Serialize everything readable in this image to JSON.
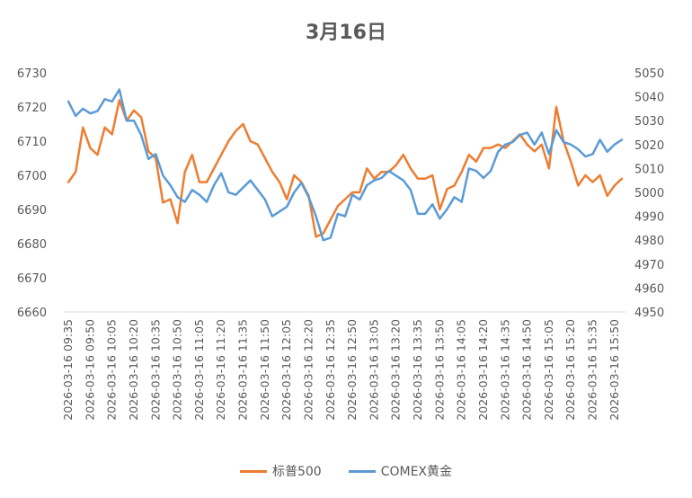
{
  "chart_data": {
    "type": "line",
    "title": "3月16日",
    "x": [
      "2026-03-16 09:35",
      "2026-03-16 09:40",
      "2026-03-16 09:45",
      "2026-03-16 09:50",
      "2026-03-16 09:55",
      "2026-03-16 10:00",
      "2026-03-16 10:05",
      "2026-03-16 10:10",
      "2026-03-16 10:15",
      "2026-03-16 10:20",
      "2026-03-16 10:25",
      "2026-03-16 10:30",
      "2026-03-16 10:35",
      "2026-03-16 10:40",
      "2026-03-16 10:45",
      "2026-03-16 10:50",
      "2026-03-16 10:55",
      "2026-03-16 11:00",
      "2026-03-16 11:05",
      "2026-03-16 11:10",
      "2026-03-16 11:15",
      "2026-03-16 11:20",
      "2026-03-16 11:25",
      "2026-03-16 11:30",
      "2026-03-16 11:35",
      "2026-03-16 11:40",
      "2026-03-16 11:45",
      "2026-03-16 11:50",
      "2026-03-16 11:55",
      "2026-03-16 12:00",
      "2026-03-16 12:05",
      "2026-03-16 12:10",
      "2026-03-16 12:15",
      "2026-03-16 12:20",
      "2026-03-16 12:25",
      "2026-03-16 12:30",
      "2026-03-16 12:35",
      "2026-03-16 12:40",
      "2026-03-16 12:45",
      "2026-03-16 12:50",
      "2026-03-16 12:55",
      "2026-03-16 13:00",
      "2026-03-16 13:05",
      "2026-03-16 13:10",
      "2026-03-16 13:15",
      "2026-03-16 13:20",
      "2026-03-16 13:25",
      "2026-03-16 13:30",
      "2026-03-16 13:35",
      "2026-03-16 13:40",
      "2026-03-16 13:45",
      "2026-03-16 13:50",
      "2026-03-16 13:55",
      "2026-03-16 14:00",
      "2026-03-16 14:05",
      "2026-03-16 14:10",
      "2026-03-16 14:15",
      "2026-03-16 14:20",
      "2026-03-16 14:25",
      "2026-03-16 14:30",
      "2026-03-16 14:35",
      "2026-03-16 14:40",
      "2026-03-16 14:45",
      "2026-03-16 14:50",
      "2026-03-16 14:55",
      "2026-03-16 15:00",
      "2026-03-16 15:05",
      "2026-03-16 15:10",
      "2026-03-16 15:15",
      "2026-03-16 15:20",
      "2026-03-16 15:25",
      "2026-03-16 15:30",
      "2026-03-16 15:35",
      "2026-03-16 15:40",
      "2026-03-16 15:45",
      "2026-03-16 15:50",
      "2026-03-16 15:55"
    ],
    "x_tick_labels": [
      "2026-03-16 09:35",
      "2026-03-16 09:50",
      "2026-03-16 10:05",
      "2026-03-16 10:20",
      "2026-03-16 10:35",
      "2026-03-16 10:50",
      "2026-03-16 11:05",
      "2026-03-16 11:20",
      "2026-03-16 11:35",
      "2026-03-16 11:50",
      "2026-03-16 12:05",
      "2026-03-16 12:20",
      "2026-03-16 12:35",
      "2026-03-16 12:50",
      "2026-03-16 13:05",
      "2026-03-16 13:20",
      "2026-03-16 13:35",
      "2026-03-16 13:50",
      "2026-03-16 14:05",
      "2026-03-16 14:20",
      "2026-03-16 14:35",
      "2026-03-16 14:50",
      "2026-03-16 15:05",
      "2026-03-16 15:20",
      "2026-03-16 15:35",
      "2026-03-16 15:50"
    ],
    "y_left": {
      "min": 6660,
      "max": 6730,
      "ticks": [
        "6660",
        "6670",
        "6680",
        "6690",
        "6700",
        "6710",
        "6720",
        "6730"
      ]
    },
    "y_right": {
      "min": 4950,
      "max": 5050,
      "ticks": [
        "4950",
        "4960",
        "4970",
        "4980",
        "4990",
        "5000",
        "5010",
        "5020",
        "5030",
        "5040",
        "5050"
      ]
    },
    "grid": false,
    "legend_position": "bottom",
    "series": [
      {
        "name": "标普500",
        "axis": "left",
        "color": "#ED7D31",
        "values": [
          6698,
          6701,
          6714,
          6708,
          6706,
          6714,
          6712,
          6722,
          6716,
          6719,
          6717,
          6707,
          6705,
          6692,
          6693,
          6686,
          6701,
          6706,
          6698,
          6698,
          6702,
          6706,
          6710,
          6713,
          6715,
          6710,
          6709,
          6705,
          6701,
          6698,
          6693,
          6700,
          6698,
          6694,
          6682,
          6683,
          6687,
          6691,
          6693,
          6695,
          6695,
          6702,
          6699,
          6701,
          6701,
          6703,
          6706,
          6702,
          6699,
          6699,
          6700,
          6690,
          6696,
          6697,
          6701,
          6706,
          6704,
          6708,
          6708,
          6709,
          6708,
          6710,
          6712,
          6709,
          6707,
          6709,
          6702,
          6720,
          6710,
          6704,
          6697,
          6700,
          6698,
          6700,
          6694,
          6697,
          6699
        ]
      },
      {
        "name": "COMEX黄金",
        "axis": "right",
        "color": "#5B9BD5",
        "values": [
          5038,
          5032,
          5035,
          5033,
          5034,
          5039,
          5038,
          5043,
          5030,
          5030,
          5024,
          5014,
          5016,
          5007,
          5003,
          4998,
          4996,
          5001,
          4999,
          4996,
          5003,
          5008,
          5000,
          4999,
          5002,
          5005,
          5001,
          4997,
          4990,
          4992,
          4994,
          5000,
          5004,
          4998,
          4990,
          4980,
          4981,
          4991,
          4990,
          4999,
          4997,
          5003,
          5005,
          5006,
          5009,
          5007,
          5005,
          5001,
          4991,
          4991,
          4995,
          4989,
          4993,
          4998,
          4996,
          5010,
          5009,
          5006,
          5009,
          5017,
          5020,
          5021,
          5024,
          5025,
          5020,
          5025,
          5016,
          5026,
          5021,
          5020,
          5018,
          5015,
          5016,
          5022,
          5017,
          5020,
          5022
        ]
      }
    ]
  }
}
